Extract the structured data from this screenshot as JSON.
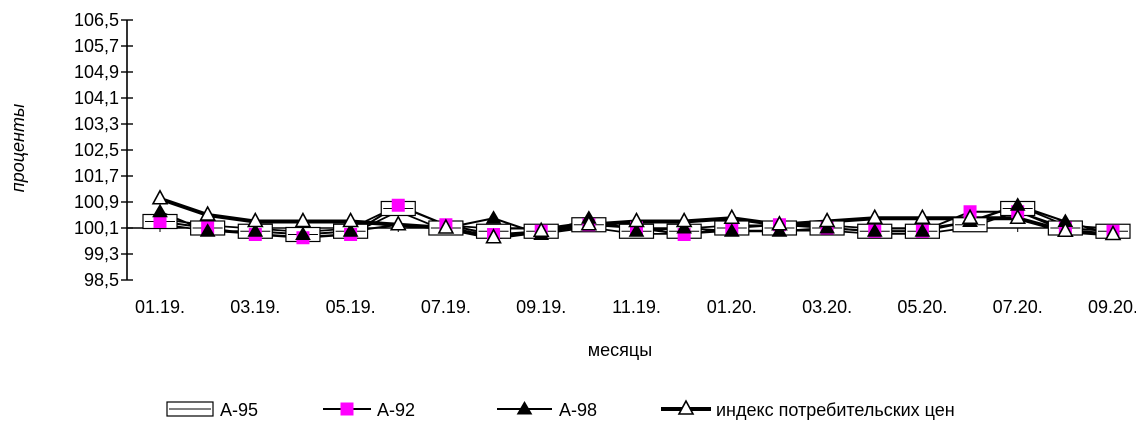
{
  "chart_data": {
    "type": "line",
    "ylabel": "проценты",
    "xlabel": "месяцы",
    "ylim": [
      98.5,
      106.5
    ],
    "y_ticks": [
      "106,5",
      "105,7",
      "104,9",
      "104,1",
      "103,3",
      "102,5",
      "101,7",
      "100,9",
      "100,1",
      "99,3",
      "98,5"
    ],
    "y_tick_values": [
      106.5,
      105.7,
      104.9,
      104.1,
      103.3,
      102.5,
      101.7,
      100.9,
      100.1,
      99.3,
      98.5
    ],
    "x": [
      "01.19.",
      "02.19.",
      "03.19.",
      "04.19.",
      "05.19.",
      "06.19.",
      "07.19.",
      "08.19.",
      "09.19.",
      "10.19.",
      "11.19.",
      "12.19.",
      "01.20.",
      "02.20.",
      "03.20.",
      "04.20.",
      "05.20.",
      "06.20.",
      "07.20.",
      "08.20.",
      "09.20."
    ],
    "x_tick_labels": [
      "01.19.",
      "",
      "03.19.",
      "",
      "05.19.",
      "",
      "07.19.",
      "",
      "09.19.",
      "",
      "11.19.",
      "",
      "01.20.",
      "",
      "03.20.",
      "",
      "05.20.",
      "",
      "07.20.",
      "",
      "09.20."
    ],
    "grid": false,
    "legend_position": "bottom",
    "series": [
      {
        "name": "А-95",
        "marker": "hollow-rect",
        "color": "#000000",
        "values": [
          100.3,
          100.1,
          100.0,
          99.9,
          100.0,
          100.7,
          100.1,
          100.0,
          100.0,
          100.2,
          100.0,
          100.0,
          100.1,
          100.1,
          100.1,
          100.0,
          100.0,
          100.2,
          100.7,
          100.1,
          100.0
        ]
      },
      {
        "name": "А-92",
        "marker": "square",
        "color": "#ff00ff",
        "values": [
          100.3,
          100.1,
          99.9,
          99.8,
          99.9,
          100.8,
          100.2,
          99.9,
          100.0,
          100.2,
          100.1,
          99.9,
          100.1,
          100.2,
          100.1,
          100.0,
          100.0,
          100.6,
          100.6,
          100.1,
          100.0
        ]
      },
      {
        "name": "А-98",
        "marker": "triangle",
        "color": "#000000",
        "values": [
          100.6,
          100.0,
          100.0,
          99.9,
          100.0,
          100.2,
          100.1,
          100.4,
          99.9,
          100.4,
          100.0,
          100.1,
          100.0,
          100.0,
          100.1,
          100.0,
          100.0,
          100.3,
          100.8,
          100.3,
          99.9
        ]
      },
      {
        "name": "индекс потребительских цен",
        "marker": "hollow-triangle",
        "color": "#000000",
        "values": [
          101.0,
          100.5,
          100.3,
          100.3,
          100.3,
          100.2,
          100.1,
          99.8,
          100.0,
          100.2,
          100.3,
          100.3,
          100.4,
          100.2,
          100.3,
          100.4,
          100.4,
          100.4,
          100.4,
          100.0,
          99.9
        ]
      }
    ]
  }
}
